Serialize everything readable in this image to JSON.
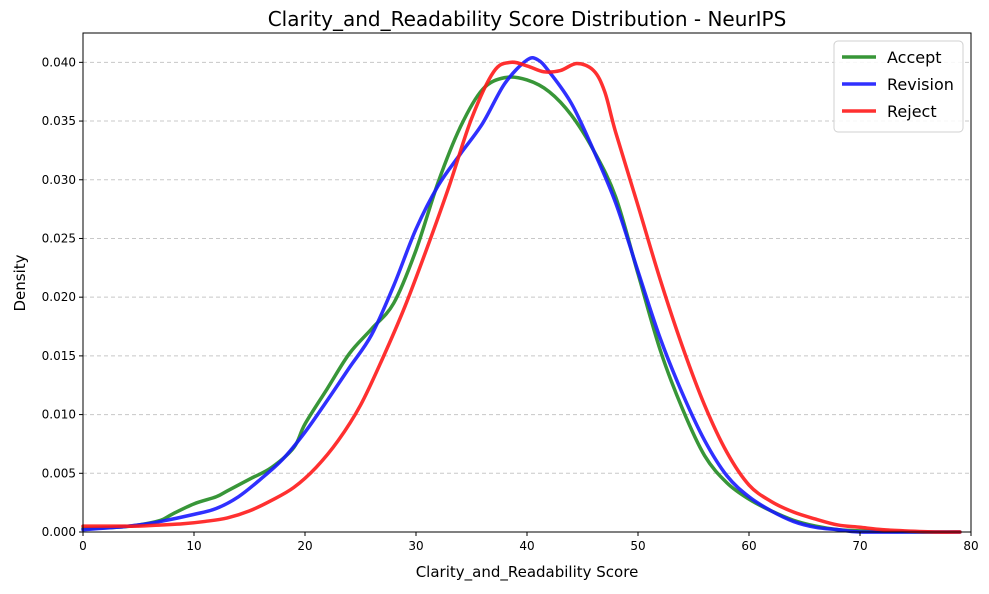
{
  "chart_data": {
    "type": "line",
    "title": "Clarity_and_Readability Score Distribution - NeurIPS",
    "xlabel": "Clarity_and_Readability Score",
    "ylabel": "Density",
    "xlim": [
      0,
      80
    ],
    "ylim": [
      0,
      0.0425
    ],
    "x_ticks": [
      0,
      10,
      20,
      30,
      40,
      50,
      60,
      70,
      80
    ],
    "x_tick_labels": [
      "0",
      "10",
      "20",
      "30",
      "40",
      "50",
      "60",
      "70",
      "80"
    ],
    "y_ticks": [
      0,
      0.005,
      0.01,
      0.015,
      0.02,
      0.025,
      0.03,
      0.035,
      0.04
    ],
    "y_tick_labels": [
      "0.000",
      "0.005",
      "0.010",
      "0.015",
      "0.020",
      "0.025",
      "0.030",
      "0.035",
      "0.040"
    ],
    "grid": "y-dashed",
    "legend_position": "top-right",
    "series": [
      {
        "name": "Accept",
        "color": "#228B22",
        "points": [
          [
            0,
            0.0003
          ],
          [
            3,
            0.0004
          ],
          [
            5,
            0.0006
          ],
          [
            7,
            0.001
          ],
          [
            8,
            0.0015
          ],
          [
            10,
            0.0024
          ],
          [
            12,
            0.003
          ],
          [
            13,
            0.0035
          ],
          [
            15,
            0.0045
          ],
          [
            17,
            0.0055
          ],
          [
            19,
            0.0072
          ],
          [
            20,
            0.0092
          ],
          [
            22,
            0.0122
          ],
          [
            24,
            0.0152
          ],
          [
            26,
            0.0173
          ],
          [
            28,
            0.0195
          ],
          [
            30,
            0.024
          ],
          [
            32,
            0.0298
          ],
          [
            34,
            0.0345
          ],
          [
            36,
            0.0377
          ],
          [
            38,
            0.0387
          ],
          [
            40,
            0.0385
          ],
          [
            42,
            0.0375
          ],
          [
            44,
            0.0355
          ],
          [
            46,
            0.0325
          ],
          [
            48,
            0.0285
          ],
          [
            50,
            0.022
          ],
          [
            52,
            0.0155
          ],
          [
            54,
            0.0105
          ],
          [
            56,
            0.0065
          ],
          [
            58,
            0.0042
          ],
          [
            60,
            0.0028
          ],
          [
            62,
            0.0018
          ],
          [
            64,
            0.001
          ],
          [
            66,
            0.0005
          ],
          [
            68,
            0.0002
          ],
          [
            70,
            0.0001
          ],
          [
            75,
            0
          ],
          [
            79,
            0
          ]
        ]
      },
      {
        "name": "Revision",
        "color": "#1a1aff",
        "points": [
          [
            0,
            0.0002
          ],
          [
            3,
            0.0004
          ],
          [
            5,
            0.0006
          ],
          [
            7,
            0.0009
          ],
          [
            10,
            0.0015
          ],
          [
            12,
            0.002
          ],
          [
            14,
            0.003
          ],
          [
            16,
            0.0045
          ],
          [
            18,
            0.0062
          ],
          [
            20,
            0.0085
          ],
          [
            22,
            0.0112
          ],
          [
            24,
            0.014
          ],
          [
            26,
            0.0168
          ],
          [
            28,
            0.021
          ],
          [
            30,
            0.0258
          ],
          [
            32,
            0.0295
          ],
          [
            34,
            0.0322
          ],
          [
            36,
            0.0348
          ],
          [
            38,
            0.0382
          ],
          [
            40,
            0.0402
          ],
          [
            41,
            0.0402
          ],
          [
            42,
            0.0392
          ],
          [
            44,
            0.0365
          ],
          [
            46,
            0.0325
          ],
          [
            48,
            0.028
          ],
          [
            50,
            0.0222
          ],
          [
            52,
            0.0165
          ],
          [
            54,
            0.0118
          ],
          [
            56,
            0.0078
          ],
          [
            58,
            0.0048
          ],
          [
            60,
            0.003
          ],
          [
            62,
            0.0018
          ],
          [
            64,
            0.0009
          ],
          [
            66,
            0.0004
          ],
          [
            68,
            0.0002
          ],
          [
            70,
            0
          ],
          [
            75,
            0
          ],
          [
            79,
            0
          ]
        ]
      },
      {
        "name": "Reject",
        "color": "#ff1a1a",
        "points": [
          [
            0,
            0.0005
          ],
          [
            3,
            0.0005
          ],
          [
            5,
            0.0005
          ],
          [
            7,
            0.0006
          ],
          [
            9,
            0.0007
          ],
          [
            11,
            0.0009
          ],
          [
            13,
            0.0012
          ],
          [
            15,
            0.0018
          ],
          [
            17,
            0.0027
          ],
          [
            19,
            0.0038
          ],
          [
            21,
            0.0055
          ],
          [
            23,
            0.0078
          ],
          [
            25,
            0.0108
          ],
          [
            27,
            0.0148
          ],
          [
            29,
            0.0192
          ],
          [
            31,
            0.0242
          ],
          [
            33,
            0.0295
          ],
          [
            35,
            0.0352
          ],
          [
            37,
            0.0392
          ],
          [
            38.5,
            0.04
          ],
          [
            40,
            0.0397
          ],
          [
            41.5,
            0.0392
          ],
          [
            43,
            0.0393
          ],
          [
            44.5,
            0.0399
          ],
          [
            46,
            0.0393
          ],
          [
            47,
            0.0375
          ],
          [
            48,
            0.034
          ],
          [
            50,
            0.0278
          ],
          [
            52,
            0.0215
          ],
          [
            54,
            0.0158
          ],
          [
            56,
            0.0108
          ],
          [
            58,
            0.0068
          ],
          [
            60,
            0.004
          ],
          [
            62,
            0.0026
          ],
          [
            64,
            0.0017
          ],
          [
            66,
            0.0011
          ],
          [
            68,
            0.0006
          ],
          [
            70,
            0.0004
          ],
          [
            72,
            0.0002
          ],
          [
            74,
            0.0001
          ],
          [
            77,
            0.0
          ],
          [
            79,
            0
          ]
        ]
      }
    ]
  }
}
